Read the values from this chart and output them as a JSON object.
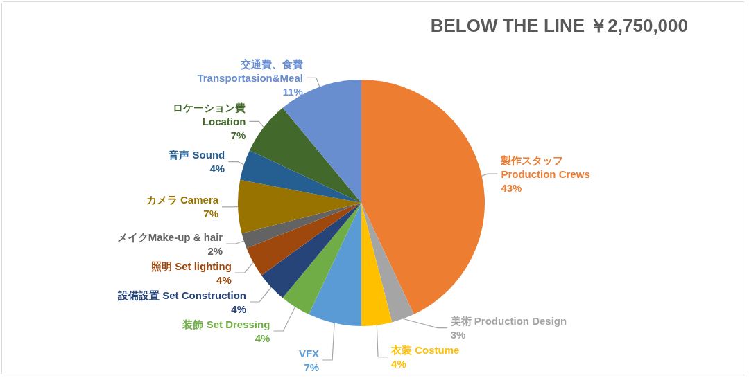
{
  "chart_data": {
    "type": "pie",
    "title": "BELOW THE LINE ￥2,750,000",
    "categories": [
      "製作スタッフ\nProduction Crews",
      "美術 Production Design",
      "衣装 Costume",
      "VFX",
      "装飾 Set Dressing",
      "設備設置 Set Construction",
      "照明 Set lighting",
      "メイクMake-up & hair",
      "カメラ Camera",
      "音声 Sound",
      "ロケーション費\nLocation",
      "交通費、食費\nTransportasion&Meal"
    ],
    "values": [
      43,
      3,
      4,
      7,
      4,
      4,
      4,
      2,
      7,
      4,
      7,
      11
    ],
    "value_labels": [
      "43%",
      "3%",
      "4%",
      "7%",
      "4%",
      "4%",
      "4%",
      "2%",
      "7%",
      "4%",
      "7%",
      "11%"
    ],
    "colors": [
      "#ed7d31",
      "#a5a5a5",
      "#ffc000",
      "#5b9bd5",
      "#70ad47",
      "#264478",
      "#9e480e",
      "#636363",
      "#997300",
      "#255e91",
      "#43682b",
      "#698ed0"
    ]
  }
}
